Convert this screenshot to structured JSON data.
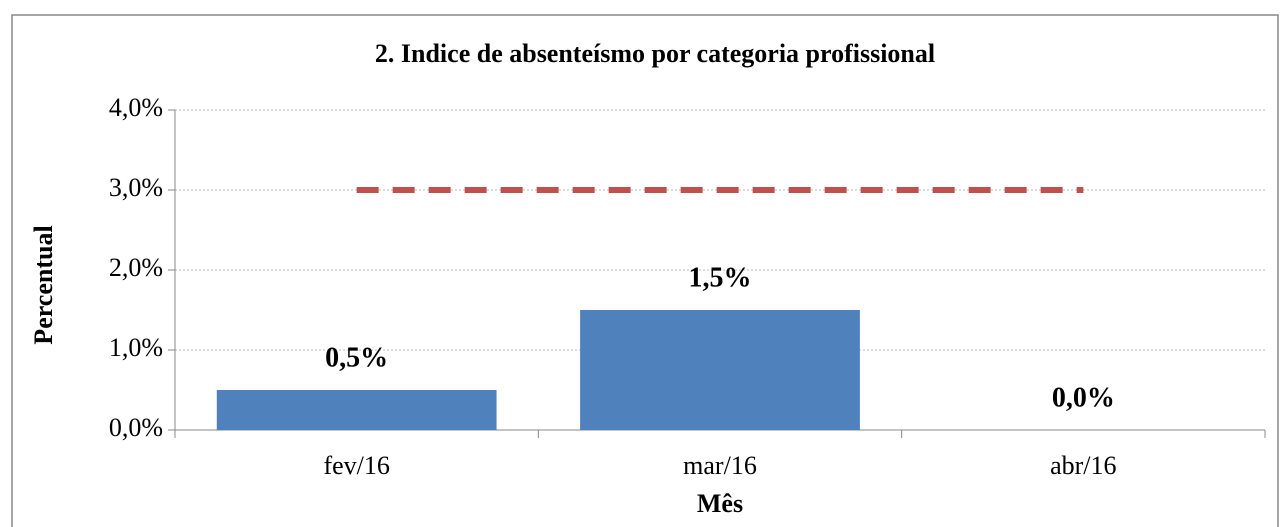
{
  "chart_data": {
    "type": "bar",
    "title": "2. Indice de absenteísmo por categoria profissional",
    "xlabel": "Mês",
    "ylabel": "Percentual",
    "categories": [
      "fev/16",
      "mar/16",
      "abr/16"
    ],
    "values": [
      0.5,
      1.5,
      0.0
    ],
    "value_labels": [
      "0,5%",
      "1,5%",
      "0,0%"
    ],
    "color": "#4f81bd",
    "reference_line": {
      "values": [
        3.0,
        3.0,
        3.0
      ],
      "color": "#c0504d"
    },
    "ylim": [
      0,
      4
    ],
    "yticks": [
      {
        "value": 0,
        "label": "0,0%"
      },
      {
        "value": 1,
        "label": "1,0%"
      },
      {
        "value": 2,
        "label": "2,0%"
      },
      {
        "value": 3,
        "label": "3,0%"
      },
      {
        "value": 4,
        "label": "4,0%"
      }
    ],
    "grid": true
  }
}
